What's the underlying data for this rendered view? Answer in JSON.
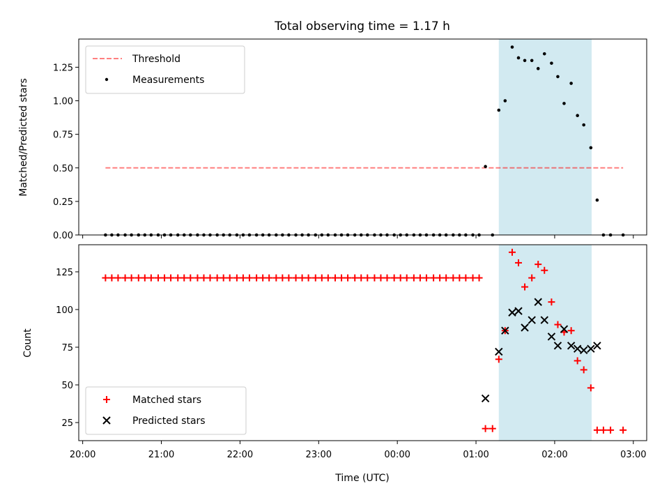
{
  "chart_data": [
    {
      "type": "scatter",
      "title": "Total observing time = 1.17 h",
      "xlabel": "",
      "ylabel": "Matched/Predicted stars",
      "ylim": [
        0,
        1.46
      ],
      "yticks": [
        "0.00",
        "0.25",
        "0.50",
        "0.75",
        "1.00",
        "1.25"
      ],
      "xlim": [
        -0.05,
        7.17
      ],
      "x_unit": "hours after 20:00 UTC",
      "highlight_span": [
        5.29,
        6.47
      ],
      "highlight_color": "#add8e6",
      "legend": {
        "position": "upper-left",
        "entries": [
          "Threshold",
          "Measurements"
        ]
      },
      "threshold": {
        "name": "Threshold",
        "value": 0.5,
        "x_range": [
          0.29,
          6.87
        ],
        "color": "#ff0000",
        "style": "dashed"
      },
      "series": [
        {
          "name": "Measurements",
          "color": "#000000",
          "marker": "dot",
          "points": [
            [
              0.29,
              0
            ],
            [
              0.37,
              0
            ],
            [
              0.45,
              0
            ],
            [
              0.54,
              0
            ],
            [
              0.62,
              0
            ],
            [
              0.71,
              0
            ],
            [
              0.79,
              0
            ],
            [
              0.87,
              0
            ],
            [
              0.96,
              0
            ],
            [
              1.04,
              0
            ],
            [
              1.12,
              0
            ],
            [
              1.21,
              0
            ],
            [
              1.29,
              0
            ],
            [
              1.37,
              0
            ],
            [
              1.46,
              0
            ],
            [
              1.54,
              0
            ],
            [
              1.62,
              0
            ],
            [
              1.71,
              0
            ],
            [
              1.79,
              0
            ],
            [
              1.87,
              0
            ],
            [
              1.96,
              0
            ],
            [
              2.04,
              0
            ],
            [
              2.12,
              0
            ],
            [
              2.21,
              0
            ],
            [
              2.29,
              0
            ],
            [
              2.37,
              0
            ],
            [
              2.46,
              0
            ],
            [
              2.54,
              0
            ],
            [
              2.62,
              0
            ],
            [
              2.71,
              0
            ],
            [
              2.79,
              0
            ],
            [
              2.87,
              0
            ],
            [
              2.96,
              0
            ],
            [
              3.04,
              0
            ],
            [
              3.12,
              0
            ],
            [
              3.21,
              0
            ],
            [
              3.29,
              0
            ],
            [
              3.37,
              0
            ],
            [
              3.46,
              0
            ],
            [
              3.54,
              0
            ],
            [
              3.62,
              0
            ],
            [
              3.71,
              0
            ],
            [
              3.79,
              0
            ],
            [
              3.87,
              0
            ],
            [
              3.96,
              0
            ],
            [
              4.04,
              0
            ],
            [
              4.12,
              0
            ],
            [
              4.21,
              0
            ],
            [
              4.29,
              0
            ],
            [
              4.37,
              0
            ],
            [
              4.46,
              0
            ],
            [
              4.54,
              0
            ],
            [
              4.62,
              0
            ],
            [
              4.71,
              0
            ],
            [
              4.79,
              0
            ],
            [
              4.87,
              0
            ],
            [
              4.96,
              0
            ],
            [
              5.04,
              0
            ],
            [
              5.12,
              0.51
            ],
            [
              5.21,
              0
            ],
            [
              5.29,
              0.93
            ],
            [
              5.37,
              1.0
            ],
            [
              5.46,
              1.4
            ],
            [
              5.54,
              1.32
            ],
            [
              5.62,
              1.3
            ],
            [
              5.71,
              1.3
            ],
            [
              5.79,
              1.24
            ],
            [
              5.87,
              1.35
            ],
            [
              5.96,
              1.28
            ],
            [
              6.04,
              1.18
            ],
            [
              6.12,
              0.98
            ],
            [
              6.21,
              1.13
            ],
            [
              6.29,
              0.89
            ],
            [
              6.37,
              0.82
            ],
            [
              6.46,
              0.65
            ],
            [
              6.54,
              0.26
            ],
            [
              6.62,
              0
            ],
            [
              6.71,
              0
            ],
            [
              6.87,
              0
            ]
          ]
        }
      ]
    },
    {
      "type": "scatter",
      "title": "",
      "xlabel": "Time (UTC)",
      "ylabel": "Count",
      "ylim": [
        13,
        143
      ],
      "yticks": [
        "25",
        "50",
        "75",
        "100",
        "125"
      ],
      "xlim": [
        -0.05,
        7.17
      ],
      "x_unit": "hours after 20:00 UTC",
      "xticks": [
        "20:00",
        "21:00",
        "22:00",
        "23:00",
        "00:00",
        "01:00",
        "02:00",
        "03:00"
      ],
      "highlight_span": [
        5.29,
        6.47
      ],
      "highlight_color": "#add8e6",
      "legend": {
        "position": "lower-left",
        "entries": [
          "Matched stars",
          "Predicted stars"
        ]
      },
      "series": [
        {
          "name": "Matched stars",
          "color": "#ff0000",
          "marker": "plus",
          "points": [
            [
              0.29,
              121
            ],
            [
              0.37,
              121
            ],
            [
              0.45,
              121
            ],
            [
              0.54,
              121
            ],
            [
              0.62,
              121
            ],
            [
              0.71,
              121
            ],
            [
              0.79,
              121
            ],
            [
              0.87,
              121
            ],
            [
              0.96,
              121
            ],
            [
              1.04,
              121
            ],
            [
              1.12,
              121
            ],
            [
              1.21,
              121
            ],
            [
              1.29,
              121
            ],
            [
              1.37,
              121
            ],
            [
              1.46,
              121
            ],
            [
              1.54,
              121
            ],
            [
              1.62,
              121
            ],
            [
              1.71,
              121
            ],
            [
              1.79,
              121
            ],
            [
              1.87,
              121
            ],
            [
              1.96,
              121
            ],
            [
              2.04,
              121
            ],
            [
              2.12,
              121
            ],
            [
              2.21,
              121
            ],
            [
              2.29,
              121
            ],
            [
              2.37,
              121
            ],
            [
              2.46,
              121
            ],
            [
              2.54,
              121
            ],
            [
              2.62,
              121
            ],
            [
              2.71,
              121
            ],
            [
              2.79,
              121
            ],
            [
              2.87,
              121
            ],
            [
              2.96,
              121
            ],
            [
              3.04,
              121
            ],
            [
              3.12,
              121
            ],
            [
              3.21,
              121
            ],
            [
              3.29,
              121
            ],
            [
              3.37,
              121
            ],
            [
              3.46,
              121
            ],
            [
              3.54,
              121
            ],
            [
              3.62,
              121
            ],
            [
              3.71,
              121
            ],
            [
              3.79,
              121
            ],
            [
              3.87,
              121
            ],
            [
              3.96,
              121
            ],
            [
              4.04,
              121
            ],
            [
              4.12,
              121
            ],
            [
              4.21,
              121
            ],
            [
              4.29,
              121
            ],
            [
              4.37,
              121
            ],
            [
              4.46,
              121
            ],
            [
              4.54,
              121
            ],
            [
              4.62,
              121
            ],
            [
              4.71,
              121
            ],
            [
              4.79,
              121
            ],
            [
              4.87,
              121
            ],
            [
              4.96,
              121
            ],
            [
              5.04,
              121
            ],
            [
              5.12,
              21
            ],
            [
              5.21,
              21
            ],
            [
              5.29,
              67
            ],
            [
              5.37,
              86
            ],
            [
              5.46,
              138
            ],
            [
              5.54,
              131
            ],
            [
              5.62,
              115
            ],
            [
              5.71,
              121
            ],
            [
              5.79,
              130
            ],
            [
              5.87,
              126
            ],
            [
              5.96,
              105
            ],
            [
              6.04,
              90
            ],
            [
              6.12,
              85
            ],
            [
              6.21,
              86
            ],
            [
              6.29,
              66
            ],
            [
              6.37,
              60
            ],
            [
              6.46,
              48
            ],
            [
              6.54,
              20
            ],
            [
              6.62,
              20
            ],
            [
              6.71,
              20
            ],
            [
              6.87,
              20
            ]
          ]
        },
        {
          "name": "Predicted stars",
          "color": "#000000",
          "marker": "x",
          "points": [
            [
              5.12,
              41
            ],
            [
              5.29,
              72
            ],
            [
              5.37,
              86
            ],
            [
              5.46,
              98
            ],
            [
              5.54,
              99
            ],
            [
              5.62,
              88
            ],
            [
              5.71,
              93
            ],
            [
              5.79,
              105
            ],
            [
              5.87,
              93
            ],
            [
              5.96,
              82
            ],
            [
              6.04,
              76
            ],
            [
              6.12,
              87
            ],
            [
              6.21,
              76
            ],
            [
              6.29,
              74
            ],
            [
              6.37,
              73
            ],
            [
              6.46,
              74
            ],
            [
              6.54,
              76
            ]
          ]
        }
      ]
    }
  ]
}
